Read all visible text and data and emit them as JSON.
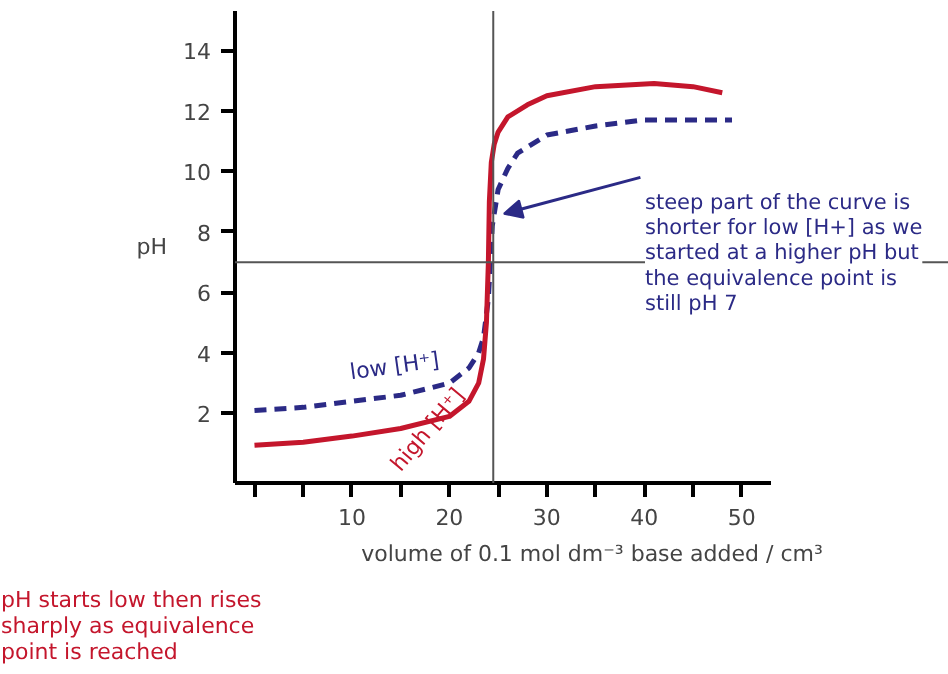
{
  "chart_data": {
    "type": "line",
    "ylabel": "pH",
    "xlabel": "volume of 0.1 mol dm⁻³ base added / cm³",
    "xlim": [
      -2,
      53
    ],
    "ylim": [
      -0.3,
      15.3
    ],
    "xticks": [
      {
        "value": 0,
        "label": null
      },
      {
        "value": 5,
        "label": null
      },
      10,
      {
        "value": 15,
        "label": null
      },
      20,
      {
        "value": 25,
        "label": null
      },
      30,
      {
        "value": 35,
        "label": null
      },
      40,
      {
        "value": 45,
        "label": null
      },
      50
    ],
    "yticks": [
      2,
      4,
      6,
      8,
      10,
      12,
      14
    ],
    "grid": false,
    "marker": "none",
    "series": [
      {
        "name": "low [H⁺]",
        "color": "#2b2a86",
        "line_style": "dashed",
        "x": [
          0,
          5,
          10,
          15,
          20,
          22,
          23,
          23.5,
          24,
          24.2,
          24.4,
          25,
          26,
          27,
          30,
          35,
          40,
          45,
          49
        ],
        "values": [
          2.1,
          2.2,
          2.4,
          2.6,
          3.0,
          3.5,
          4.0,
          4.5,
          5.8,
          7.0,
          8.2,
          9.4,
          10.1,
          10.6,
          11.2,
          11.5,
          11.7,
          11.7,
          11.7
        ]
      },
      {
        "name": "high [H⁺]",
        "color": "#c4162c",
        "line_style": "solid",
        "x": [
          0,
          5,
          10,
          15,
          20,
          22,
          23,
          23.5,
          23.8,
          24,
          24.1,
          24.3,
          24.6,
          25,
          26,
          28,
          30,
          35,
          41,
          45,
          48
        ],
        "values": [
          0.95,
          1.05,
          1.25,
          1.5,
          1.9,
          2.4,
          3.0,
          3.8,
          5.0,
          7.0,
          9.0,
          10.3,
          10.9,
          11.3,
          11.8,
          12.2,
          12.5,
          12.8,
          12.9,
          12.8,
          12.6
        ]
      }
    ],
    "ref_lines": [
      {
        "axis": "x",
        "value": 24.5,
        "label": null,
        "color": "#555555"
      },
      {
        "axis": "y",
        "value": 7,
        "label": null,
        "color": "#555555"
      }
    ],
    "annotations": [
      {
        "text": "steep part of the curve is shorter for low [H+] as we started at a higher pH but the equivalence point is still pH 7",
        "x": 25.6,
        "y": 8.6
      },
      "pH starts low then rises sharply as equivalence point is reached"
    ]
  }
}
